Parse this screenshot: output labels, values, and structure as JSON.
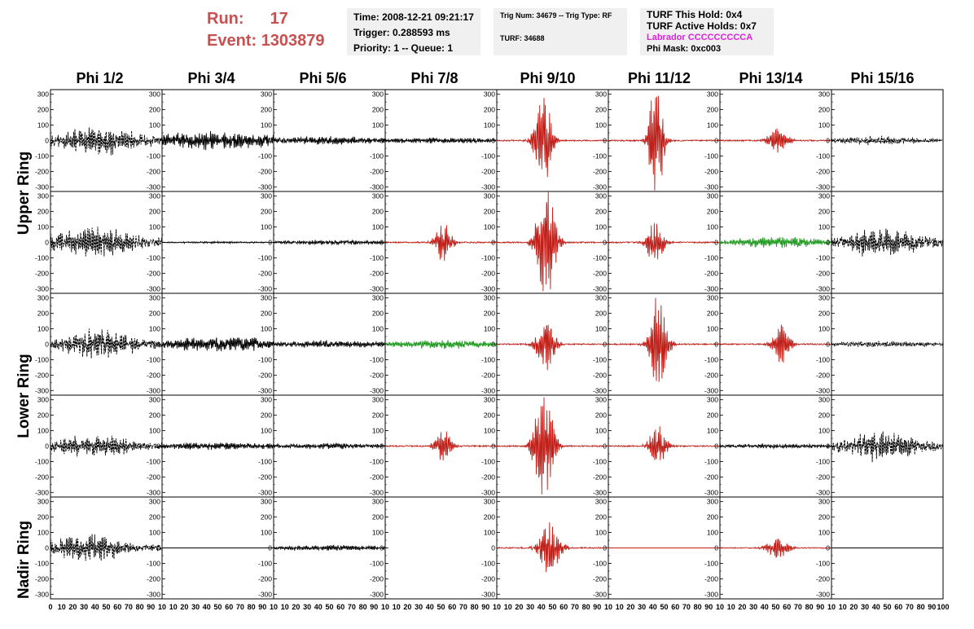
{
  "header": {
    "run_label": "Run:",
    "run_value": "17",
    "event_label": "Event:",
    "event_value": "1303879",
    "box1": {
      "time": "Time: 2008-12-21 09:21:17",
      "trigger": "Trigger: 0.288593 ms",
      "priority": "Priority: 1 -- Queue: 1"
    },
    "box2": {
      "trig": "Trig Num: 34679 -- Trig Type: RF",
      "turf": "TURF: 34688"
    },
    "box3": {
      "hold": "TURF This Hold: 0x4",
      "active": "TURF Active Holds: 0x7",
      "labrador": "Labrador CCCCCCCCCA",
      "phimask": "Phi Mask: 0xc003"
    }
  },
  "colors": {
    "run_text": "#c8504f",
    "labrador_text": "#e020e0",
    "trace_black": "#000000",
    "trace_red": "#c0201a",
    "trace_green": "#1e9a1e",
    "box_bg": "#f0f0f0"
  },
  "column_titles": [
    "Phi 1/2",
    "Phi 3/4",
    "Phi 5/6",
    "Phi 7/8",
    "Phi 9/10",
    "Phi 11/12",
    "Phi 13/14",
    "Phi 15/16"
  ],
  "ring_labels": [
    "Upper Ring",
    "Lower Ring",
    "Nadir Ring"
  ],
  "chart_data": {
    "type": "line",
    "grid": false,
    "ylim": [
      -330,
      330
    ],
    "xlim": [
      0,
      100
    ],
    "y_ticks": [
      -300,
      -200,
      -100,
      0,
      100,
      200,
      300
    ],
    "x_tick_labels": [
      "0",
      "10",
      "20",
      "30",
      "40",
      "50",
      "60",
      "70",
      "80",
      "90",
      "10",
      "10",
      "20",
      "30",
      "40",
      "50",
      "60",
      "70",
      "80",
      "90",
      "10",
      "10",
      "20",
      "30",
      "40",
      "50",
      "60",
      "70",
      "80",
      "90",
      "10",
      "10",
      "20",
      "30",
      "40",
      "50",
      "60",
      "70",
      "80",
      "90",
      "10",
      "10",
      "20",
      "30",
      "40",
      "50",
      "60",
      "70",
      "80",
      "90",
      "10",
      "10",
      "20",
      "30",
      "40",
      "50",
      "60",
      "70",
      "80",
      "90",
      "10",
      "10",
      "20",
      "30",
      "40",
      "50",
      "60",
      "70",
      "80",
      "90",
      "10",
      "10",
      "20",
      "30",
      "40",
      "50",
      "60",
      "70",
      "80",
      "90",
      "100"
    ],
    "rows": 5,
    "cols": 8,
    "panels": [
      [
        {
          "color": "black",
          "peak": 80,
          "center": 45,
          "width": 35,
          "noise": 50,
          "style": "dashed"
        },
        {
          "color": "black",
          "peak": 50,
          "center": 50,
          "width": 60,
          "noise": 35,
          "style": "solid"
        },
        {
          "color": "black",
          "peak": 20,
          "center": 50,
          "width": 60,
          "noise": 15,
          "style": "solid"
        },
        {
          "color": "black",
          "peak": 15,
          "center": 50,
          "width": 60,
          "noise": 10,
          "style": "solid"
        },
        {
          "color": "red",
          "peak": 280,
          "center": 42,
          "width": 8,
          "noise": 8,
          "style": "solid"
        },
        {
          "color": "red",
          "peak": 340,
          "center": 43,
          "width": 7,
          "noise": 8,
          "style": "solid"
        },
        {
          "color": "red",
          "peak": 70,
          "center": 52,
          "width": 10,
          "noise": 8,
          "style": "solid"
        },
        {
          "color": "black",
          "peak": 25,
          "center": 40,
          "width": 40,
          "noise": 15,
          "style": "dashed"
        }
      ],
      [
        {
          "color": "black",
          "peak": 80,
          "center": 40,
          "width": 40,
          "noise": 45,
          "style": "dashed"
        },
        {
          "color": "black",
          "peak": 5,
          "center": 50,
          "width": 60,
          "noise": 3,
          "style": "solid"
        },
        {
          "color": "black",
          "peak": 12,
          "center": 50,
          "width": 60,
          "noise": 8,
          "style": "solid"
        },
        {
          "color": "red",
          "peak": 110,
          "center": 52,
          "width": 8,
          "noise": 8,
          "style": "solid"
        },
        {
          "color": "red",
          "peak": 330,
          "center": 44,
          "width": 9,
          "noise": 8,
          "style": "solid"
        },
        {
          "color": "red",
          "peak": 130,
          "center": 42,
          "width": 8,
          "noise": 8,
          "style": "solid"
        },
        {
          "color": "green",
          "peak": 30,
          "center": 50,
          "width": 50,
          "noise": 12,
          "style": "solid"
        },
        {
          "color": "black",
          "peak": 80,
          "center": 45,
          "width": 35,
          "noise": 45,
          "style": "dashed"
        }
      ],
      [
        {
          "color": "black",
          "peak": 90,
          "center": 45,
          "width": 35,
          "noise": 40,
          "style": "dashed"
        },
        {
          "color": "black",
          "peak": 40,
          "center": 50,
          "width": 60,
          "noise": 25,
          "style": "solid"
        },
        {
          "color": "black",
          "peak": 20,
          "center": 50,
          "width": 60,
          "noise": 12,
          "style": "solid"
        },
        {
          "color": "green",
          "peak": 25,
          "center": 50,
          "width": 55,
          "noise": 12,
          "style": "solid"
        },
        {
          "color": "red",
          "peak": 160,
          "center": 44,
          "width": 9,
          "noise": 8,
          "style": "solid"
        },
        {
          "color": "red",
          "peak": 280,
          "center": 45,
          "width": 8,
          "noise": 8,
          "style": "solid"
        },
        {
          "color": "red",
          "peak": 120,
          "center": 55,
          "width": 8,
          "noise": 8,
          "style": "solid"
        },
        {
          "color": "black",
          "peak": 15,
          "center": 50,
          "width": 60,
          "noise": 8,
          "style": "dashed"
        }
      ],
      [
        {
          "color": "black",
          "peak": 60,
          "center": 40,
          "width": 40,
          "noise": 35,
          "style": "dashed"
        },
        {
          "color": "black",
          "peak": 20,
          "center": 50,
          "width": 60,
          "noise": 12,
          "style": "solid"
        },
        {
          "color": "black",
          "peak": 15,
          "center": 50,
          "width": 60,
          "noise": 10,
          "style": "solid"
        },
        {
          "color": "red",
          "peak": 110,
          "center": 52,
          "width": 8,
          "noise": 8,
          "style": "solid"
        },
        {
          "color": "red",
          "peak": 320,
          "center": 42,
          "width": 9,
          "noise": 8,
          "style": "solid"
        },
        {
          "color": "red",
          "peak": 120,
          "center": 44,
          "width": 8,
          "noise": 8,
          "style": "solid"
        },
        {
          "color": "black",
          "peak": 12,
          "center": 50,
          "width": 60,
          "noise": 8,
          "style": "solid"
        },
        {
          "color": "black",
          "peak": 80,
          "center": 45,
          "width": 35,
          "noise": 45,
          "style": "dashed"
        }
      ],
      [
        {
          "color": "black",
          "peak": 80,
          "center": 35,
          "width": 30,
          "noise": 40,
          "style": "dashed"
        },
        {
          "color": "black",
          "peak": 0,
          "center": 50,
          "width": 60,
          "noise": 0,
          "style": "solid"
        },
        {
          "color": "black",
          "peak": 15,
          "center": 50,
          "width": 60,
          "noise": 10,
          "style": "solid"
        },
        null,
        {
          "color": "red",
          "peak": 150,
          "center": 48,
          "width": 10,
          "noise": 8,
          "style": "solid"
        },
        {
          "color": "red",
          "peak": 0,
          "center": 50,
          "width": 60,
          "noise": 0,
          "style": "solid"
        },
        {
          "color": "red",
          "peak": 70,
          "center": 52,
          "width": 10,
          "noise": 6,
          "style": "solid"
        },
        {
          "color": "black",
          "peak": 0,
          "center": 50,
          "width": 60,
          "noise": 0,
          "style": "solid"
        }
      ]
    ]
  }
}
